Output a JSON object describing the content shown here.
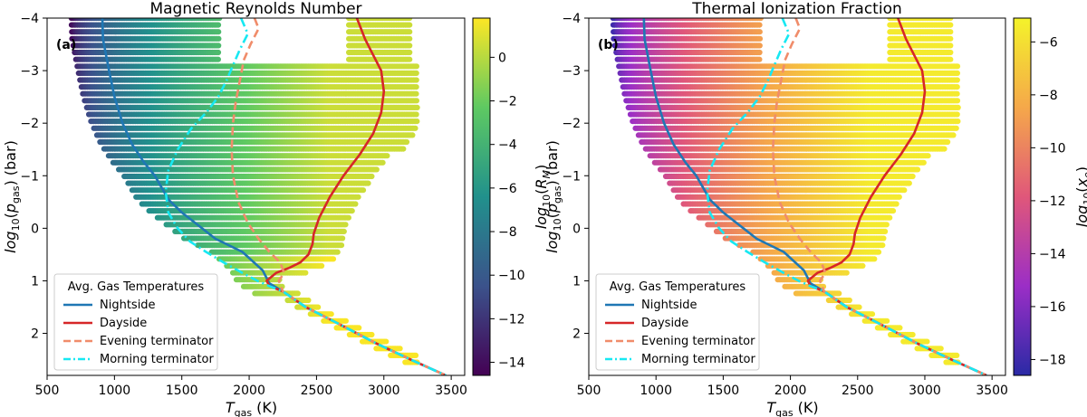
{
  "chart_data": [
    {
      "type": "scatter",
      "panel_label": "(a)",
      "title": "Magnetic Reynolds Number",
      "xlabel_main": "T",
      "xlabel_sub": "gas",
      "xlabel_unit": " (K)",
      "ylabel_pre": "log",
      "ylabel_base": "10",
      "ylabel_p": "p",
      "ylabel_sub": "gas",
      "ylabel_unit": " (bar)",
      "xlim": [
        500,
        3600
      ],
      "ylim": [
        2.8,
        -4
      ],
      "xticks": [
        "500",
        "1000",
        "1500",
        "2000",
        "2500",
        "3000",
        "3500"
      ],
      "yticks": [
        "2",
        "1",
        "0",
        "−1",
        "−2",
        "−3",
        "−4"
      ],
      "colorbar": {
        "label_pre": "log",
        "label_base": "10",
        "label_var": "R",
        "label_sub": "M",
        "range": [
          -14.6,
          1.8
        ],
        "ticks": [
          "0",
          "−2",
          "−4",
          "−6",
          "−8",
          "−10",
          "−12",
          "−14"
        ],
        "tick_values": [
          0,
          -2,
          -4,
          -6,
          -8,
          -10,
          -12,
          -14
        ],
        "colormap": "viridis",
        "colors": [
          "#440154",
          "#3b528b",
          "#21918c",
          "#5ec962",
          "#fde725"
        ]
      },
      "legend": {
        "title": "Avg. Gas Temperatures",
        "position": "lower-left",
        "entries": [
          "Nightside",
          "Dayside",
          "Evening terminator",
          "Morning terminator"
        ]
      },
      "series": [
        {
          "name": "Nightside",
          "style": "solid",
          "color": "#1f77b4",
          "x": [
            910,
            915,
            960,
            1000,
            1060,
            1130,
            1220,
            1300,
            1400,
            1500,
            1600,
            1750,
            1950,
            2100,
            2150,
            2250,
            2420,
            2650,
            2950,
            3200,
            3460
          ],
          "y": [
            -4.0,
            -3.6,
            -3.0,
            -2.5,
            -2.0,
            -1.6,
            -1.25,
            -1.0,
            -0.55,
            -0.3,
            -0.1,
            0.2,
            0.45,
            0.8,
            1.05,
            1.2,
            1.5,
            1.8,
            2.2,
            2.5,
            2.8
          ]
        },
        {
          "name": "Dayside",
          "style": "solid",
          "color": "#d62728",
          "x": [
            2800,
            2860,
            2920,
            2980,
            3000,
            2980,
            2920,
            2820,
            2700,
            2600,
            2520,
            2480,
            2470,
            2440,
            2380,
            2300,
            2200,
            2130,
            2150,
            2250,
            2420,
            2650,
            2950,
            3200,
            3460
          ],
          "y": [
            -4.0,
            -3.6,
            -3.3,
            -3.0,
            -2.6,
            -2.2,
            -1.8,
            -1.4,
            -1.0,
            -0.6,
            -0.2,
            0.1,
            0.3,
            0.5,
            0.65,
            0.75,
            0.85,
            1.0,
            1.1,
            1.2,
            1.5,
            1.8,
            2.2,
            2.5,
            2.8
          ]
        },
        {
          "name": "Evening terminator",
          "style": "dashed",
          "color": "#f08c6a",
          "x": [
            2040,
            2070,
            2010,
            1960,
            1930,
            1900,
            1880,
            1870,
            1880,
            1920,
            1990,
            2070,
            2150,
            2230,
            2260,
            2220,
            2250,
            2420,
            2650,
            2950,
            3200,
            3460
          ],
          "y": [
            -4.0,
            -3.8,
            -3.5,
            -3.2,
            -2.8,
            -2.4,
            -2.0,
            -1.5,
            -1.0,
            -0.5,
            -0.1,
            0.2,
            0.45,
            0.65,
            0.85,
            1.0,
            1.2,
            1.5,
            1.8,
            2.2,
            2.5,
            2.8
          ]
        },
        {
          "name": "Morning terminator",
          "style": "dashdot",
          "color": "#17e8f2",
          "x": [
            1940,
            1990,
            1930,
            1880,
            1830,
            1770,
            1680,
            1570,
            1470,
            1400,
            1380,
            1400,
            1470,
            1560,
            1680,
            1810,
            1950,
            2060,
            2150,
            2250,
            2420,
            2650,
            2950,
            3200,
            3460
          ],
          "y": [
            -4.0,
            -3.7,
            -3.4,
            -3.1,
            -2.8,
            -2.5,
            -2.2,
            -1.9,
            -1.5,
            -1.1,
            -0.7,
            -0.3,
            0.0,
            0.25,
            0.45,
            0.65,
            0.85,
            1.0,
            1.1,
            1.2,
            1.5,
            1.8,
            2.2,
            2.5,
            2.8
          ]
        }
      ]
    },
    {
      "type": "scatter",
      "panel_label": "(b)",
      "title": "Thermal Ionization Fraction",
      "xlabel_main": "T",
      "xlabel_sub": "gas",
      "xlabel_unit": " (K)",
      "ylabel_pre": "log",
      "ylabel_base": "10",
      "ylabel_p": "p",
      "ylabel_sub": "gas",
      "ylabel_unit": " (bar)",
      "xlim": [
        500,
        3600
      ],
      "ylim": [
        2.8,
        -4
      ],
      "xticks": [
        "500",
        "1000",
        "1500",
        "2000",
        "2500",
        "3000",
        "3500"
      ],
      "yticks": [
        "2",
        "1",
        "0",
        "−1",
        "−2",
        "−3",
        "−4"
      ],
      "colorbar": {
        "label_pre": "log",
        "label_base": "10",
        "label_var": "x",
        "label_sub": "e",
        "range": [
          -18.6,
          -5.1
        ],
        "ticks": [
          "−6",
          "−8",
          "−10",
          "−12",
          "−14",
          "−16",
          "−18"
        ],
        "tick_values": [
          -6,
          -8,
          -10,
          -12,
          -14,
          -16,
          -18
        ],
        "colormap": "plasma",
        "colors": [
          "#2a2aa5",
          "#9b2ec6",
          "#e0577a",
          "#f5a84a",
          "#f4f32a"
        ]
      },
      "legend": {
        "title": "Avg. Gas Temperatures",
        "position": "lower-left",
        "entries": [
          "Nightside",
          "Dayside",
          "Evening terminator",
          "Morning terminator"
        ]
      },
      "series": [
        {
          "name": "Nightside",
          "style": "solid",
          "color": "#1f77b4",
          "x": [
            910,
            915,
            960,
            1000,
            1060,
            1130,
            1220,
            1300,
            1400,
            1500,
            1600,
            1750,
            1950,
            2100,
            2150,
            2250,
            2420,
            2650,
            2950,
            3200,
            3460
          ],
          "y": [
            -4.0,
            -3.6,
            -3.0,
            -2.5,
            -2.0,
            -1.6,
            -1.25,
            -1.0,
            -0.55,
            -0.3,
            -0.1,
            0.2,
            0.45,
            0.8,
            1.05,
            1.2,
            1.5,
            1.8,
            2.2,
            2.5,
            2.8
          ]
        },
        {
          "name": "Dayside",
          "style": "solid",
          "color": "#d62728",
          "x": [
            2800,
            2860,
            2920,
            2980,
            3000,
            2980,
            2920,
            2820,
            2700,
            2600,
            2520,
            2480,
            2470,
            2440,
            2380,
            2300,
            2200,
            2130,
            2150,
            2250,
            2420,
            2650,
            2950,
            3200,
            3460
          ],
          "y": [
            -4.0,
            -3.6,
            -3.3,
            -3.0,
            -2.6,
            -2.2,
            -1.8,
            -1.4,
            -1.0,
            -0.6,
            -0.2,
            0.1,
            0.3,
            0.5,
            0.65,
            0.75,
            0.85,
            1.0,
            1.1,
            1.2,
            1.5,
            1.8,
            2.2,
            2.5,
            2.8
          ]
        },
        {
          "name": "Evening terminator",
          "style": "dashed",
          "color": "#f08c6a",
          "x": [
            2040,
            2070,
            2010,
            1960,
            1930,
            1900,
            1880,
            1870,
            1880,
            1920,
            1990,
            2070,
            2150,
            2230,
            2260,
            2220,
            2250,
            2420,
            2650,
            2950,
            3200,
            3460
          ],
          "y": [
            -4.0,
            -3.8,
            -3.5,
            -3.2,
            -2.8,
            -2.4,
            -2.0,
            -1.5,
            -1.0,
            -0.5,
            -0.1,
            0.2,
            0.45,
            0.65,
            0.85,
            1.0,
            1.2,
            1.5,
            1.8,
            2.2,
            2.5,
            2.8
          ]
        },
        {
          "name": "Morning terminator",
          "style": "dashdot",
          "color": "#17e8f2",
          "x": [
            1940,
            1990,
            1930,
            1880,
            1830,
            1770,
            1680,
            1570,
            1470,
            1400,
            1380,
            1400,
            1470,
            1560,
            1680,
            1810,
            1950,
            2060,
            2150,
            2250,
            2420,
            2650,
            2950,
            3200,
            3460
          ],
          "y": [
            -4.0,
            -3.7,
            -3.4,
            -3.1,
            -2.8,
            -2.5,
            -2.2,
            -1.9,
            -1.5,
            -1.1,
            -0.7,
            -0.3,
            0.0,
            0.25,
            0.45,
            0.65,
            0.85,
            1.0,
            1.1,
            1.2,
            1.5,
            1.8,
            2.2,
            2.5,
            2.8
          ]
        }
      ]
    }
  ]
}
